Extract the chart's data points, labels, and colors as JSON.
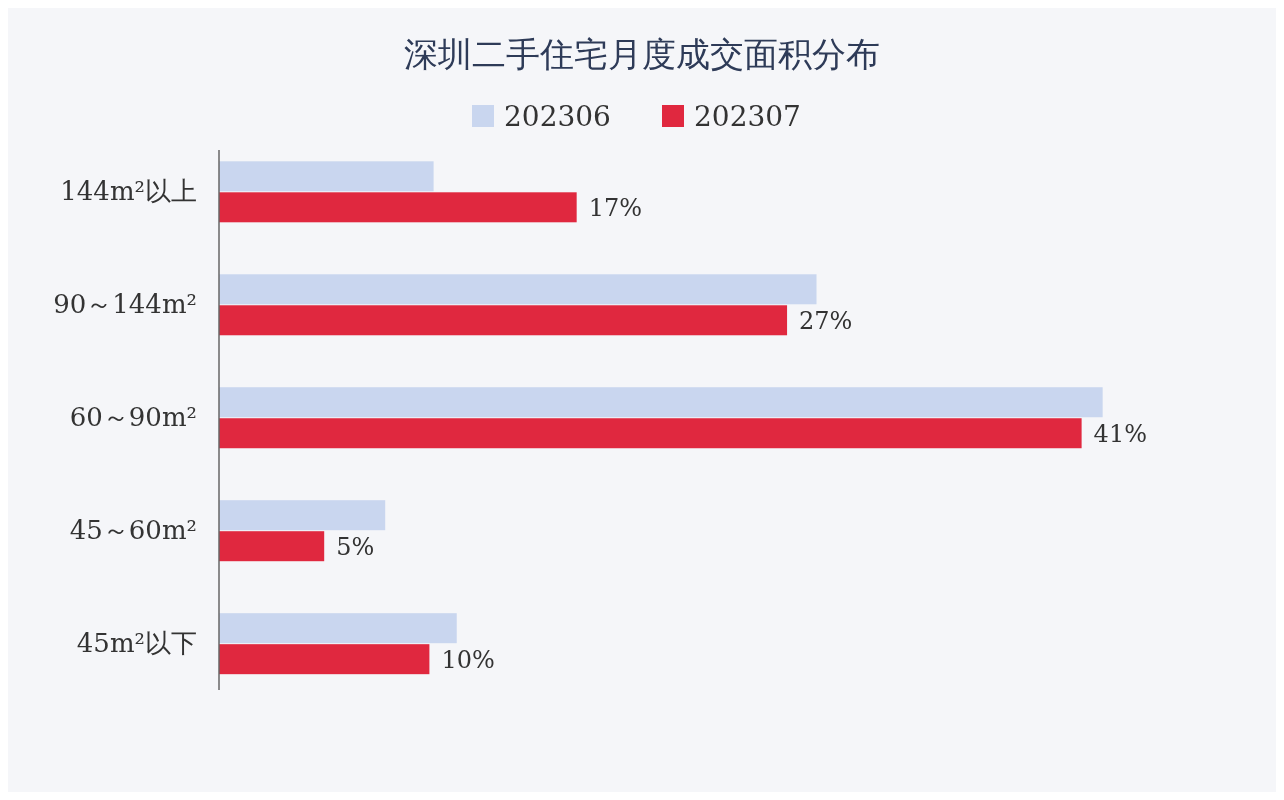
{
  "chart_data": {
    "type": "bar",
    "orientation": "horizontal",
    "title": "深圳二手住宅月度成交面积分布",
    "categories": [
      "144m²以上",
      "90～144m²",
      "60～90m²",
      "45～60m²",
      "45m²以下"
    ],
    "series": [
      {
        "name": "202306",
        "color": "#c9d6ef",
        "values": [
          10.2,
          28.4,
          42.0,
          7.9,
          11.3
        ]
      },
      {
        "name": "202307",
        "color": "#e0283f",
        "values": [
          17,
          27,
          41,
          5,
          10
        ],
        "value_labels": [
          "17%",
          "27%",
          "41%",
          "5%",
          "10%"
        ]
      }
    ],
    "legend": "top",
    "tick_labels": "y"
  }
}
